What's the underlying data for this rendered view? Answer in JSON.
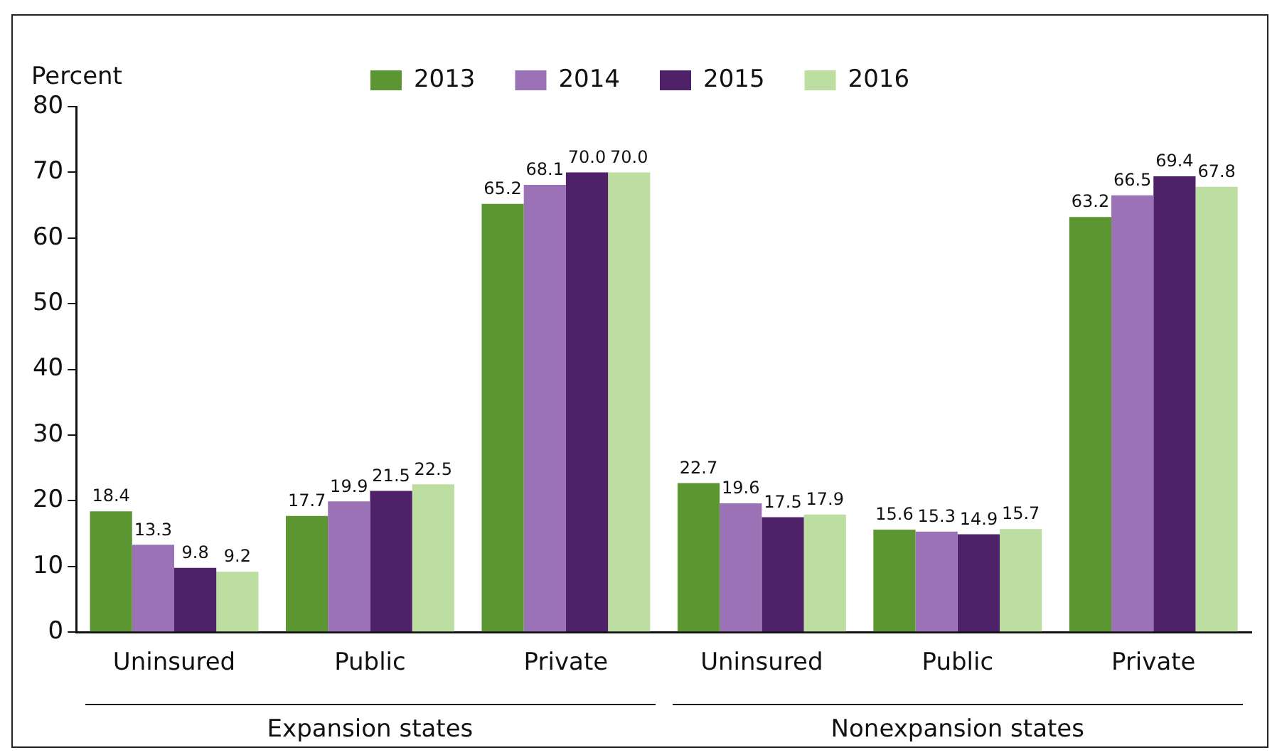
{
  "chart_data": {
    "type": "bar",
    "ylabel": "Percent",
    "categories": [
      "Uninsured",
      "Public",
      "Private",
      "Uninsured",
      "Public",
      "Private"
    ],
    "series": [
      {
        "name": "2013",
        "color": "#5b9632",
        "values": [
          18.4,
          17.7,
          65.2,
          22.7,
          15.6,
          63.2
        ],
        "value_labels": [
          "18.4",
          "17.7",
          "65.2",
          "22.7",
          "15.6",
          "63.2"
        ]
      },
      {
        "name": "2014",
        "color": "#9b72b5",
        "values": [
          13.3,
          19.9,
          68.1,
          19.6,
          15.3,
          66.5
        ],
        "value_labels": [
          "13.3",
          "19.9",
          "68.1",
          "19.6",
          "15.3",
          "66.5"
        ]
      },
      {
        "name": "2015",
        "color": "#4f2168",
        "values": [
          9.8,
          21.5,
          70,
          17.5,
          14.9,
          69.4
        ],
        "value_labels": [
          "9.8",
          "21.5",
          "70.0",
          "17.5",
          "14.9",
          "69.4"
        ]
      },
      {
        "name": "2016",
        "color": "#bcdea0",
        "values": [
          9.2,
          22.5,
          70,
          17.9,
          15.7,
          67.8
        ],
        "value_labels": [
          "9.2",
          "22.5",
          "70.0",
          "17.9",
          "15.7",
          "67.8"
        ]
      }
    ],
    "ylim": [
      0,
      80
    ],
    "yticks": [
      0,
      10,
      20,
      30,
      40,
      50,
      60,
      70,
      80
    ],
    "grid": false,
    "legend": "top",
    "annotations": [
      "Expansion states",
      "Nonexpansion states"
    ]
  }
}
